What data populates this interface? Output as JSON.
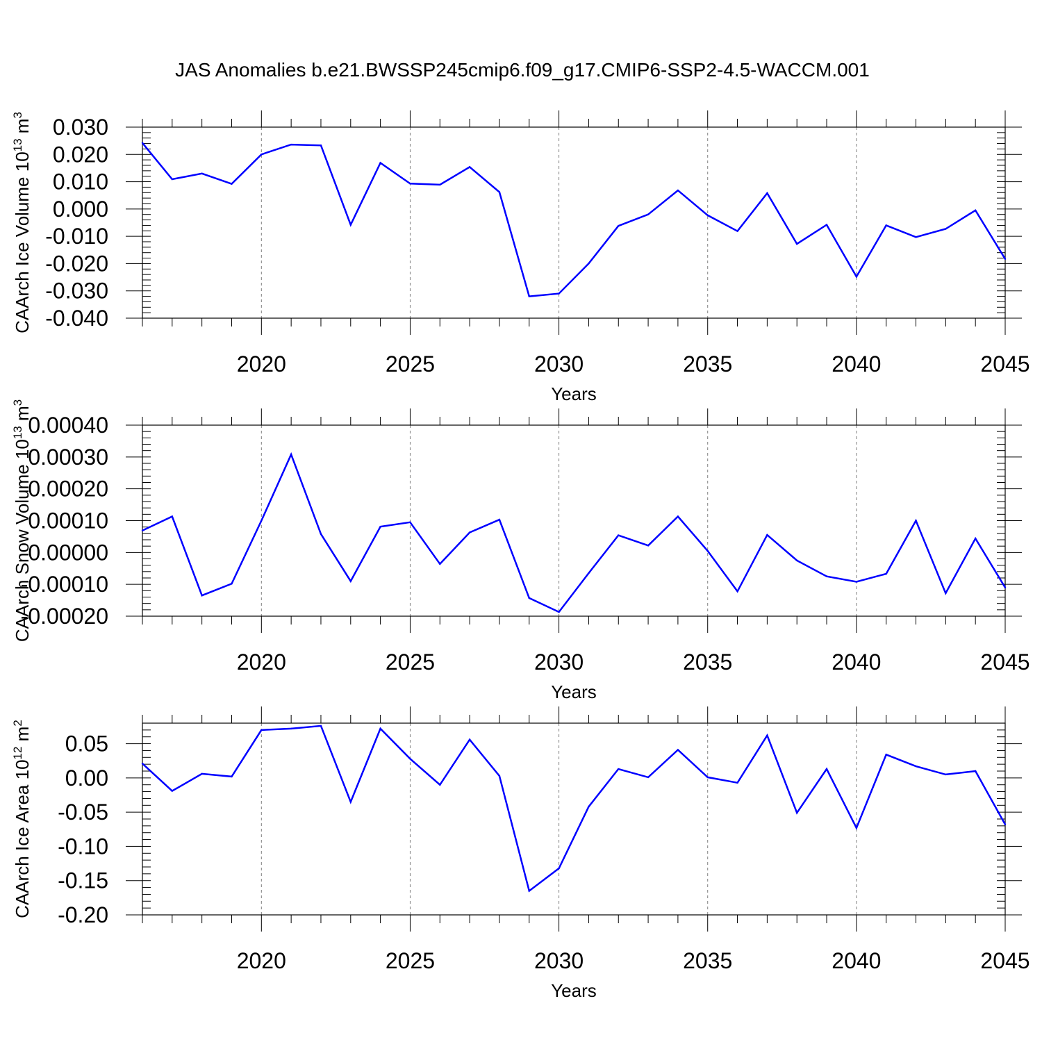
{
  "figure_title": "JAS Anomalies b.e21.BWSSP245cmip6.f09_g17.CMIP6-SSP2-4.5-WACCM.001",
  "colors": {
    "series": "#0000ff",
    "axes": "#000000",
    "grid": "#7f7f7f",
    "background": "#ffffff"
  },
  "chart_data": [
    {
      "type": "line",
      "title": "JAS Anomalies b.e21.BWSSP245cmip6.f09_g17.CMIP6-SSP2-4.5-WACCM.001",
      "xlabel": "Years",
      "ylabel": "CAArch Ice Volume 10",
      "ylabel_exp": "13",
      "ylabel_unit": " m",
      "ylabel_unit_exp": "3",
      "xlim": [
        2016,
        2045
      ],
      "ylim": [
        -0.04,
        0.03
      ],
      "x_ticks": [
        2020,
        2025,
        2030,
        2035,
        2040,
        2045
      ],
      "y_ticks": [
        "0.030",
        "0.020",
        "0.010",
        "0.000",
        "-0.010",
        "-0.020",
        "-0.030",
        "-0.040"
      ],
      "y_tick_values": [
        0.03,
        0.02,
        0.01,
        0.0,
        -0.01,
        -0.02,
        -0.03,
        -0.04
      ],
      "grid": "vertical dashed at major x ticks",
      "x": [
        2016,
        2017,
        2018,
        2019,
        2020,
        2021,
        2022,
        2023,
        2024,
        2025,
        2026,
        2027,
        2028,
        2029,
        2030,
        2031,
        2032,
        2033,
        2034,
        2035,
        2036,
        2037,
        2038,
        2039,
        2040,
        2041,
        2042,
        2043,
        2044,
        2045
      ],
      "series": [
        {
          "values": [
            0.0242,
            0.0109,
            0.013,
            0.0092,
            0.02,
            0.0236,
            0.0233,
            -0.0058,
            0.0169,
            0.0093,
            0.0089,
            0.0154,
            0.0062,
            -0.032,
            -0.031,
            -0.02,
            -0.0062,
            -0.002,
            0.0068,
            -0.0023,
            -0.0081,
            0.0058,
            -0.0128,
            -0.0058,
            -0.0248,
            -0.006,
            -0.0103,
            -0.0073,
            -0.0005,
            -0.0183
          ]
        }
      ]
    },
    {
      "type": "line",
      "xlabel": "Years",
      "ylabel": "CAArch Snow Volume 10",
      "ylabel_exp": "13",
      "ylabel_unit": " m",
      "ylabel_unit_exp": "3",
      "xlim": [
        2016,
        2045
      ],
      "ylim": [
        -0.0002,
        0.0004
      ],
      "x_ticks": [
        2020,
        2025,
        2030,
        2035,
        2040,
        2045
      ],
      "y_ticks": [
        "0.00040",
        "0.00030",
        "0.00020",
        "0.00010",
        "0.00000",
        "-0.00010",
        "-0.00020"
      ],
      "y_tick_values": [
        0.0004,
        0.0003,
        0.0002,
        0.0001,
        0.0,
        -0.0001,
        -0.0002
      ],
      "grid": "vertical dashed at major x ticks",
      "x": [
        2016,
        2017,
        2018,
        2019,
        2020,
        2021,
        2022,
        2023,
        2024,
        2025,
        2026,
        2027,
        2028,
        2029,
        2030,
        2031,
        2032,
        2033,
        2034,
        2035,
        2036,
        2037,
        2038,
        2039,
        2040,
        2041,
        2042,
        2043,
        2044,
        2045
      ],
      "series": [
        {
          "values": [
            6.9e-05,
            0.000113,
            -0.000135,
            -9.8e-05,
            0.0001,
            0.000308,
            5.8e-05,
            -9e-05,
            8.1e-05,
            9.5e-05,
            -3.6e-05,
            6.3e-05,
            0.000103,
            -0.000143,
            -0.000187,
            -6.5e-05,
            5.4e-05,
            2.2e-05,
            0.000113,
            5e-06,
            -0.000122,
            5.5e-05,
            -2.5e-05,
            -7.5e-05,
            -9.2e-05,
            -6.7e-05,
            0.0001,
            -0.000128,
            4.4e-05,
            -0.00011
          ]
        }
      ]
    },
    {
      "type": "line",
      "xlabel": "Years",
      "ylabel": "CAArch Ice Area 10",
      "ylabel_exp": "12",
      "ylabel_unit": " m",
      "ylabel_unit_exp": "2",
      "xlim": [
        2016,
        2045
      ],
      "ylim": [
        -0.2,
        0.08
      ],
      "x_ticks": [
        2020,
        2025,
        2030,
        2035,
        2040,
        2045
      ],
      "y_ticks": [
        "0.05",
        "0.00",
        "-0.05",
        "-0.10",
        "-0.15",
        "-0.20"
      ],
      "y_tick_values": [
        0.05,
        0.0,
        -0.05,
        -0.1,
        -0.15,
        -0.2
      ],
      "grid": "vertical dashed at major x ticks",
      "x": [
        2016,
        2017,
        2018,
        2019,
        2020,
        2021,
        2022,
        2023,
        2024,
        2025,
        2026,
        2027,
        2028,
        2029,
        2030,
        2031,
        2032,
        2033,
        2034,
        2035,
        2036,
        2037,
        2038,
        2039,
        2040,
        2041,
        2042,
        2043,
        2044,
        2045
      ],
      "series": [
        {
          "values": [
            0.021,
            -0.019,
            0.006,
            0.002,
            0.07,
            0.072,
            0.076,
            -0.035,
            0.072,
            0.028,
            -0.01,
            0.056,
            0.003,
            -0.165,
            -0.132,
            -0.042,
            0.013,
            0.001,
            0.041,
            0.001,
            -0.007,
            0.062,
            -0.051,
            0.013,
            -0.073,
            0.034,
            0.017,
            0.005,
            0.01,
            -0.068
          ]
        }
      ]
    }
  ]
}
